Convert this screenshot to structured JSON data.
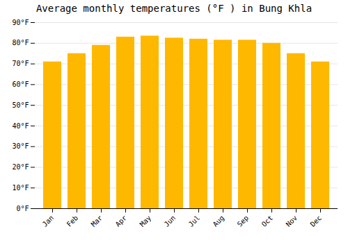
{
  "chart_data": {
    "type": "bar",
    "title": "Average monthly temperatures (°F ) in Bung Khla",
    "categories": [
      "Jan",
      "Feb",
      "Mar",
      "Apr",
      "May",
      "Jun",
      "Jul",
      "Aug",
      "Sep",
      "Oct",
      "Nov",
      "Dec"
    ],
    "values": [
      71,
      75,
      79,
      83,
      83.5,
      82.5,
      82,
      81.5,
      81.5,
      80,
      75,
      71
    ],
    "color": "#FFB800",
    "ylim": [
      0,
      90
    ],
    "yticks": [
      {
        "value": 0,
        "label": "0°F"
      },
      {
        "value": 10,
        "label": "10°F"
      },
      {
        "value": 20,
        "label": "20°F"
      },
      {
        "value": 30,
        "label": "30°F"
      },
      {
        "value": 40,
        "label": "40°F"
      },
      {
        "value": 50,
        "label": "50°F"
      },
      {
        "value": 60,
        "label": "60°F"
      },
      {
        "value": 70,
        "label": "70°F"
      },
      {
        "value": 80,
        "label": "80°F"
      },
      {
        "value": 90,
        "label": "90°F"
      }
    ],
    "grid": true
  }
}
